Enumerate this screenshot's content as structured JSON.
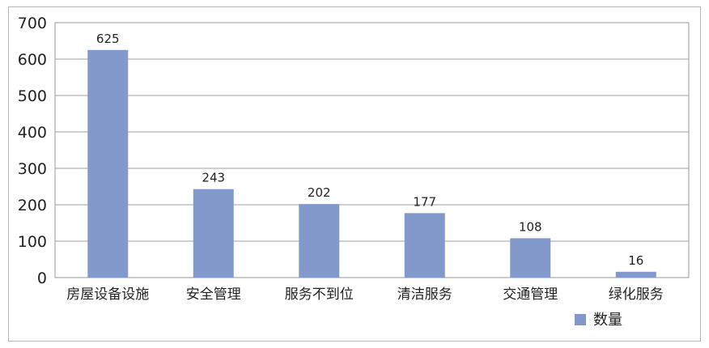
{
  "chart_data": {
    "type": "bar",
    "categories": [
      "房屋设备设施",
      "安全管理",
      "服务不到位",
      "清洁服务",
      "交通管理",
      "绿化服务"
    ],
    "series": [
      {
        "name": "数量",
        "values": [
          625,
          243,
          202,
          177,
          108,
          16
        ]
      }
    ],
    "data_labels": [
      "625",
      "243",
      "202",
      "177",
      "108",
      "16"
    ],
    "y_ticks": [
      "0",
      "100",
      "200",
      "300",
      "400",
      "500",
      "600",
      "700"
    ],
    "ylim": [
      0,
      700
    ],
    "grid": true,
    "legend": "bottom-right",
    "bar_color": "#8499cb"
  }
}
